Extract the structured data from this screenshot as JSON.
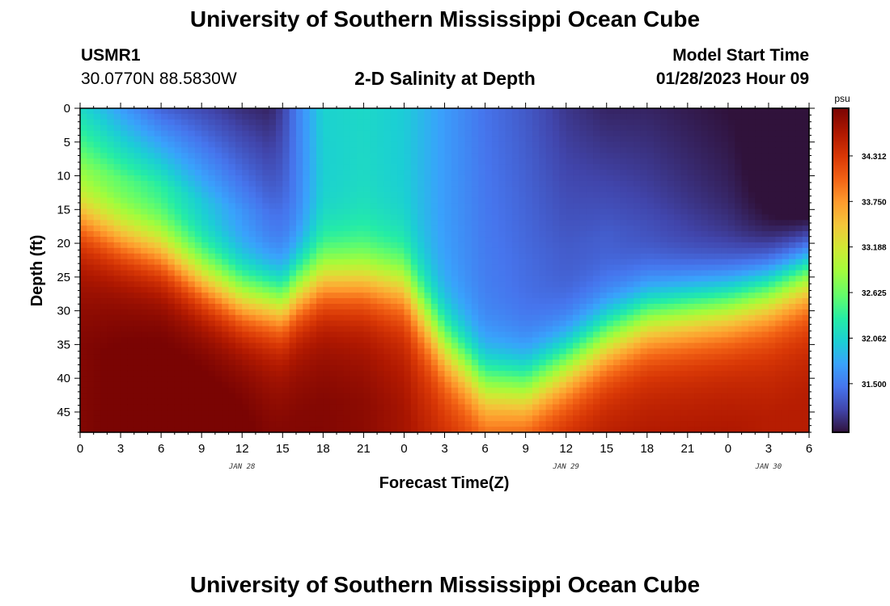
{
  "header": {
    "title": "University of Southern Mississippi Ocean Cube",
    "station_id": "USMR1",
    "station_coords": "30.0770N  88.5830W",
    "plot_title": "2-D Salinity at Depth",
    "model_start_label": "Model Start Time",
    "model_start_time": "01/28/2023 Hour 09"
  },
  "footer": {
    "title": "University of Southern Mississippi Ocean Cube"
  },
  "chart_data": {
    "type": "heatmap",
    "title": "2-D Salinity at Depth",
    "xlabel": "Forecast Time(Z)",
    "ylabel": "Depth (ft)",
    "x_tick_labels": [
      "0",
      "3",
      "6",
      "9",
      "12",
      "15",
      "18",
      "21",
      "0",
      "3",
      "6",
      "9",
      "12",
      "15",
      "18",
      "21",
      "0",
      "3",
      "6"
    ],
    "x_hours_range": [
      0,
      54
    ],
    "date_labels": [
      {
        "label": "JAN 28",
        "hour": 12
      },
      {
        "label": "JAN 29",
        "hour": 36
      },
      {
        "label": "JAN 30",
        "hour": 51
      }
    ],
    "y_tick_labels": [
      "0",
      "5",
      "10",
      "15",
      "20",
      "25",
      "30",
      "35",
      "40",
      "45"
    ],
    "ylim": [
      0,
      48
    ],
    "y_inverted": true,
    "colorbar": {
      "unit": "psu",
      "ticks": [
        "34.312",
        "33.750",
        "33.188",
        "32.625",
        "32.062",
        "31.500"
      ],
      "range": [
        30.9,
        34.9
      ]
    },
    "profiles": {
      "hours": [
        0,
        3,
        6,
        9,
        12,
        14,
        15,
        16,
        18,
        21,
        24,
        25,
        27,
        30,
        33,
        36,
        39,
        42,
        45,
        48,
        51,
        54
      ],
      "surface": [
        32.1,
        31.7,
        31.35,
        31.2,
        31.05,
        31.0,
        31.15,
        31.5,
        32.05,
        32.1,
        32.0,
        31.9,
        31.7,
        31.45,
        31.3,
        31.1,
        31.0,
        31.0,
        30.95,
        30.9,
        30.8,
        30.6
      ],
      "mid_depth": [
        32.6,
        32.4,
        32.2,
        31.9,
        31.6,
        31.4,
        31.4,
        31.5,
        32.0,
        32.1,
        32.0,
        31.9,
        31.7,
        31.5,
        31.4,
        31.3,
        31.3,
        31.2,
        31.1,
        31.0,
        30.8,
        30.6
      ],
      "halocline_depth": [
        16,
        19,
        21,
        25,
        28,
        28.5,
        29,
        27,
        25,
        25,
        26,
        29,
        35,
        41,
        41.5,
        38,
        34,
        31,
        30,
        29,
        27,
        24
      ],
      "bottom": [
        34.7,
        34.8,
        34.85,
        34.85,
        34.8,
        34.7,
        34.7,
        34.7,
        34.7,
        34.65,
        34.5,
        34.4,
        34.3,
        34.2,
        34.3,
        34.4,
        34.45,
        34.45,
        34.45,
        34.45,
        34.4,
        34.4
      ]
    }
  }
}
